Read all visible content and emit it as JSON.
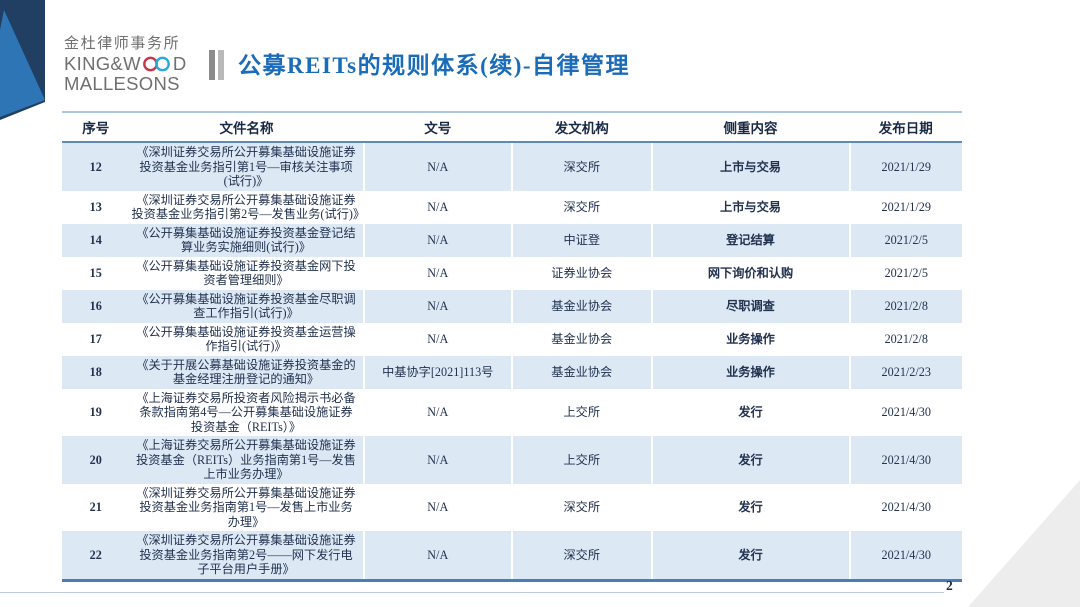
{
  "logo": {
    "chinese_name": "金杜律师事务所",
    "english_prefix": "KING&W",
    "english_suffix": "D",
    "english_line2": "MALLESONS",
    "ring_red": "#c8354d",
    "ring_blue": "#29a8df",
    "text_gray": "#6f7072"
  },
  "title": {
    "text": "公募REITs的规则体系(续)-自律管理",
    "color": "#1b6cb8"
  },
  "table": {
    "columns": [
      "序号",
      "文件名称",
      "文号",
      "发文机构",
      "侧重内容",
      "发布日期"
    ],
    "row_fields": [
      "no",
      "name",
      "doc_no",
      "agency",
      "focus",
      "date"
    ],
    "stripe_color": "#dce9f5",
    "border_blue": "#6089ba",
    "rows": [
      {
        "no": "12",
        "name": "《深圳证券交易所公开募集基础设施证券\n投资基金业务指引第1号—审核关注事项\n(试行)》",
        "doc_no": "N/A",
        "agency": "深交所",
        "focus": "上市与交易",
        "date": "2021/1/29"
      },
      {
        "no": "13",
        "name": "《深圳证券交易所公开募集基础设施证券\n投资基金业务指引第2号—发售业务(试行)》",
        "doc_no": "N/A",
        "agency": "深交所",
        "focus": "上市与交易",
        "date": "2021/1/29"
      },
      {
        "no": "14",
        "name": "《公开募集基础设施证券投资基金登记结\n算业务实施细则(试行)》",
        "doc_no": "N/A",
        "agency": "中证登",
        "focus": "登记结算",
        "date": "2021/2/5"
      },
      {
        "no": "15",
        "name": "《公开募集基础设施证券投资基金网下投\n资者管理细则》",
        "doc_no": "N/A",
        "agency": "证券业协会",
        "focus": "网下询价和认购",
        "date": "2021/2/5"
      },
      {
        "no": "16",
        "name": "《公开募集基础设施证券投资基金尽职调\n查工作指引(试行)》",
        "doc_no": "N/A",
        "agency": "基金业协会",
        "focus": "尽职调查",
        "date": "2021/2/8"
      },
      {
        "no": "17",
        "name": "《公开募集基础设施证券投资基金运营操\n作指引(试行)》",
        "doc_no": "N/A",
        "agency": "基金业协会",
        "focus": "业务操作",
        "date": "2021/2/8"
      },
      {
        "no": "18",
        "name": "《关于开展公募基础设施证券投资基金的\n基金经理注册登记的通知》",
        "doc_no": "中基协字[2021]113号",
        "agency": "基金业协会",
        "focus": "业务操作",
        "date": "2021/2/23"
      },
      {
        "no": "19",
        "name": "《上海证券交易所投资者风险揭示书必备\n条款指南第4号—公开募集基础设施证券\n投资基金（REITs）》",
        "doc_no": "N/A",
        "agency": "上交所",
        "focus": "发行",
        "date": "2021/4/30"
      },
      {
        "no": "20",
        "name": "《上海证券交易所公开募集基础设施证券\n投资基金（REITs）业务指南第1号—发售\n上市业务办理》",
        "doc_no": "N/A",
        "agency": "上交所",
        "focus": "发行",
        "date": "2021/4/30"
      },
      {
        "no": "21",
        "name": "《深圳证券交易所公开募集基础设施证券\n投资基金业务指南第1号—发售上市业务\n办理》",
        "doc_no": "N/A",
        "agency": "深交所",
        "focus": "发行",
        "date": "2021/4/30"
      },
      {
        "no": "22",
        "name": "《深圳证券交易所公开募集基础设施证券\n投资基金业务指南第2号——网下发行电\n子平台用户手册》",
        "doc_no": "N/A",
        "agency": "深交所",
        "focus": "发行",
        "date": "2021/4/30"
      }
    ]
  },
  "footer": {
    "page_number": "2"
  },
  "colors": {
    "corner_navy": "#203f63",
    "corner_blue": "#2e75b6",
    "corner_gray": "#ededed",
    "footer_line": "#bccbdb"
  }
}
